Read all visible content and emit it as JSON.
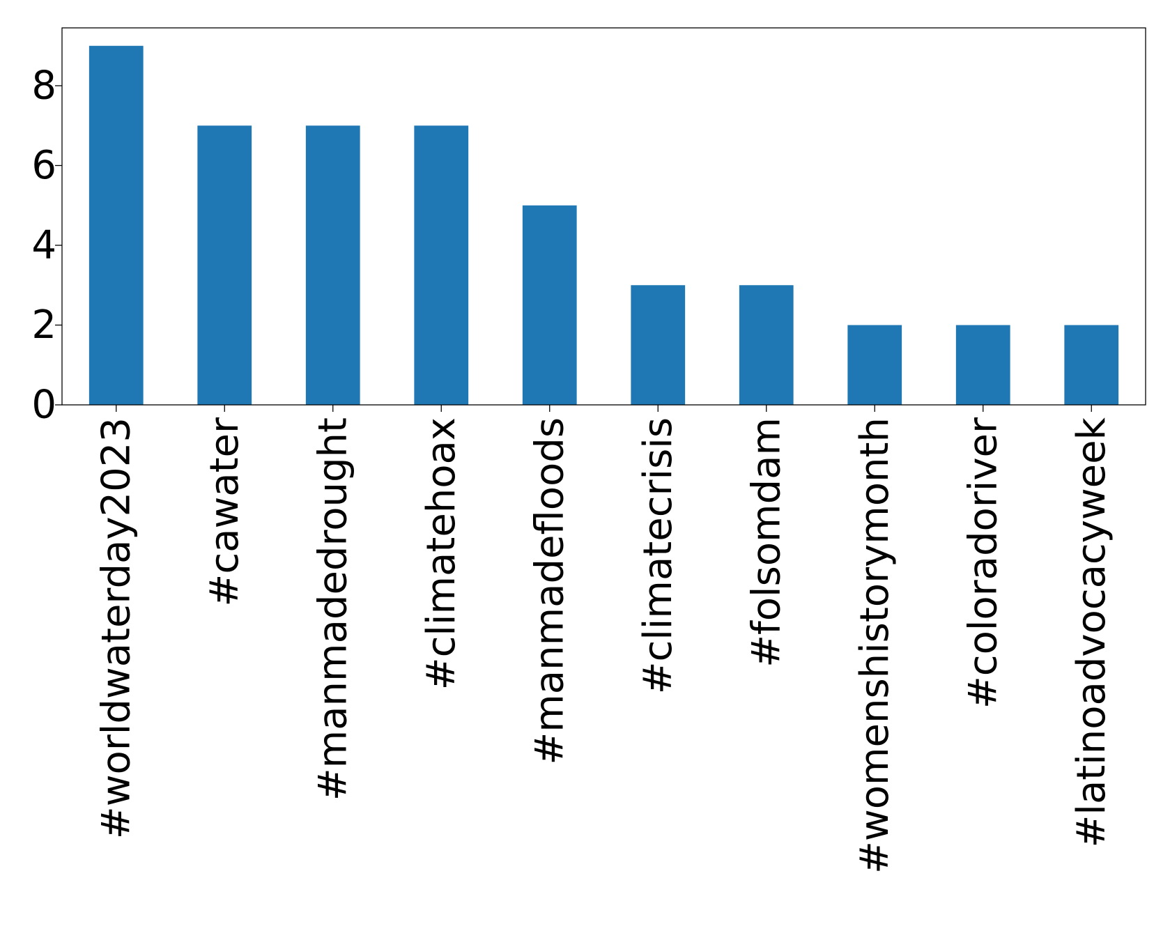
{
  "chart_data": {
    "type": "bar",
    "categories": [
      "#worldwaterday2023",
      "#cawater",
      "#manmadedrought",
      "#climatehoax",
      "#manmadefloods",
      "#climatecrisis",
      "#folsomdam",
      "#womenshistorymonth",
      "#coloradoriver",
      "#latinoadvocacyweek"
    ],
    "values": [
      9,
      7,
      7,
      7,
      5,
      3,
      3,
      2,
      2,
      2
    ],
    "title": "",
    "xlabel": "",
    "ylabel": "",
    "ylim": [
      0,
      9.45
    ],
    "yticks": [
      0,
      2,
      4,
      6,
      8
    ],
    "grid": false,
    "legend": "none",
    "bar_color": "#1f77b4"
  }
}
